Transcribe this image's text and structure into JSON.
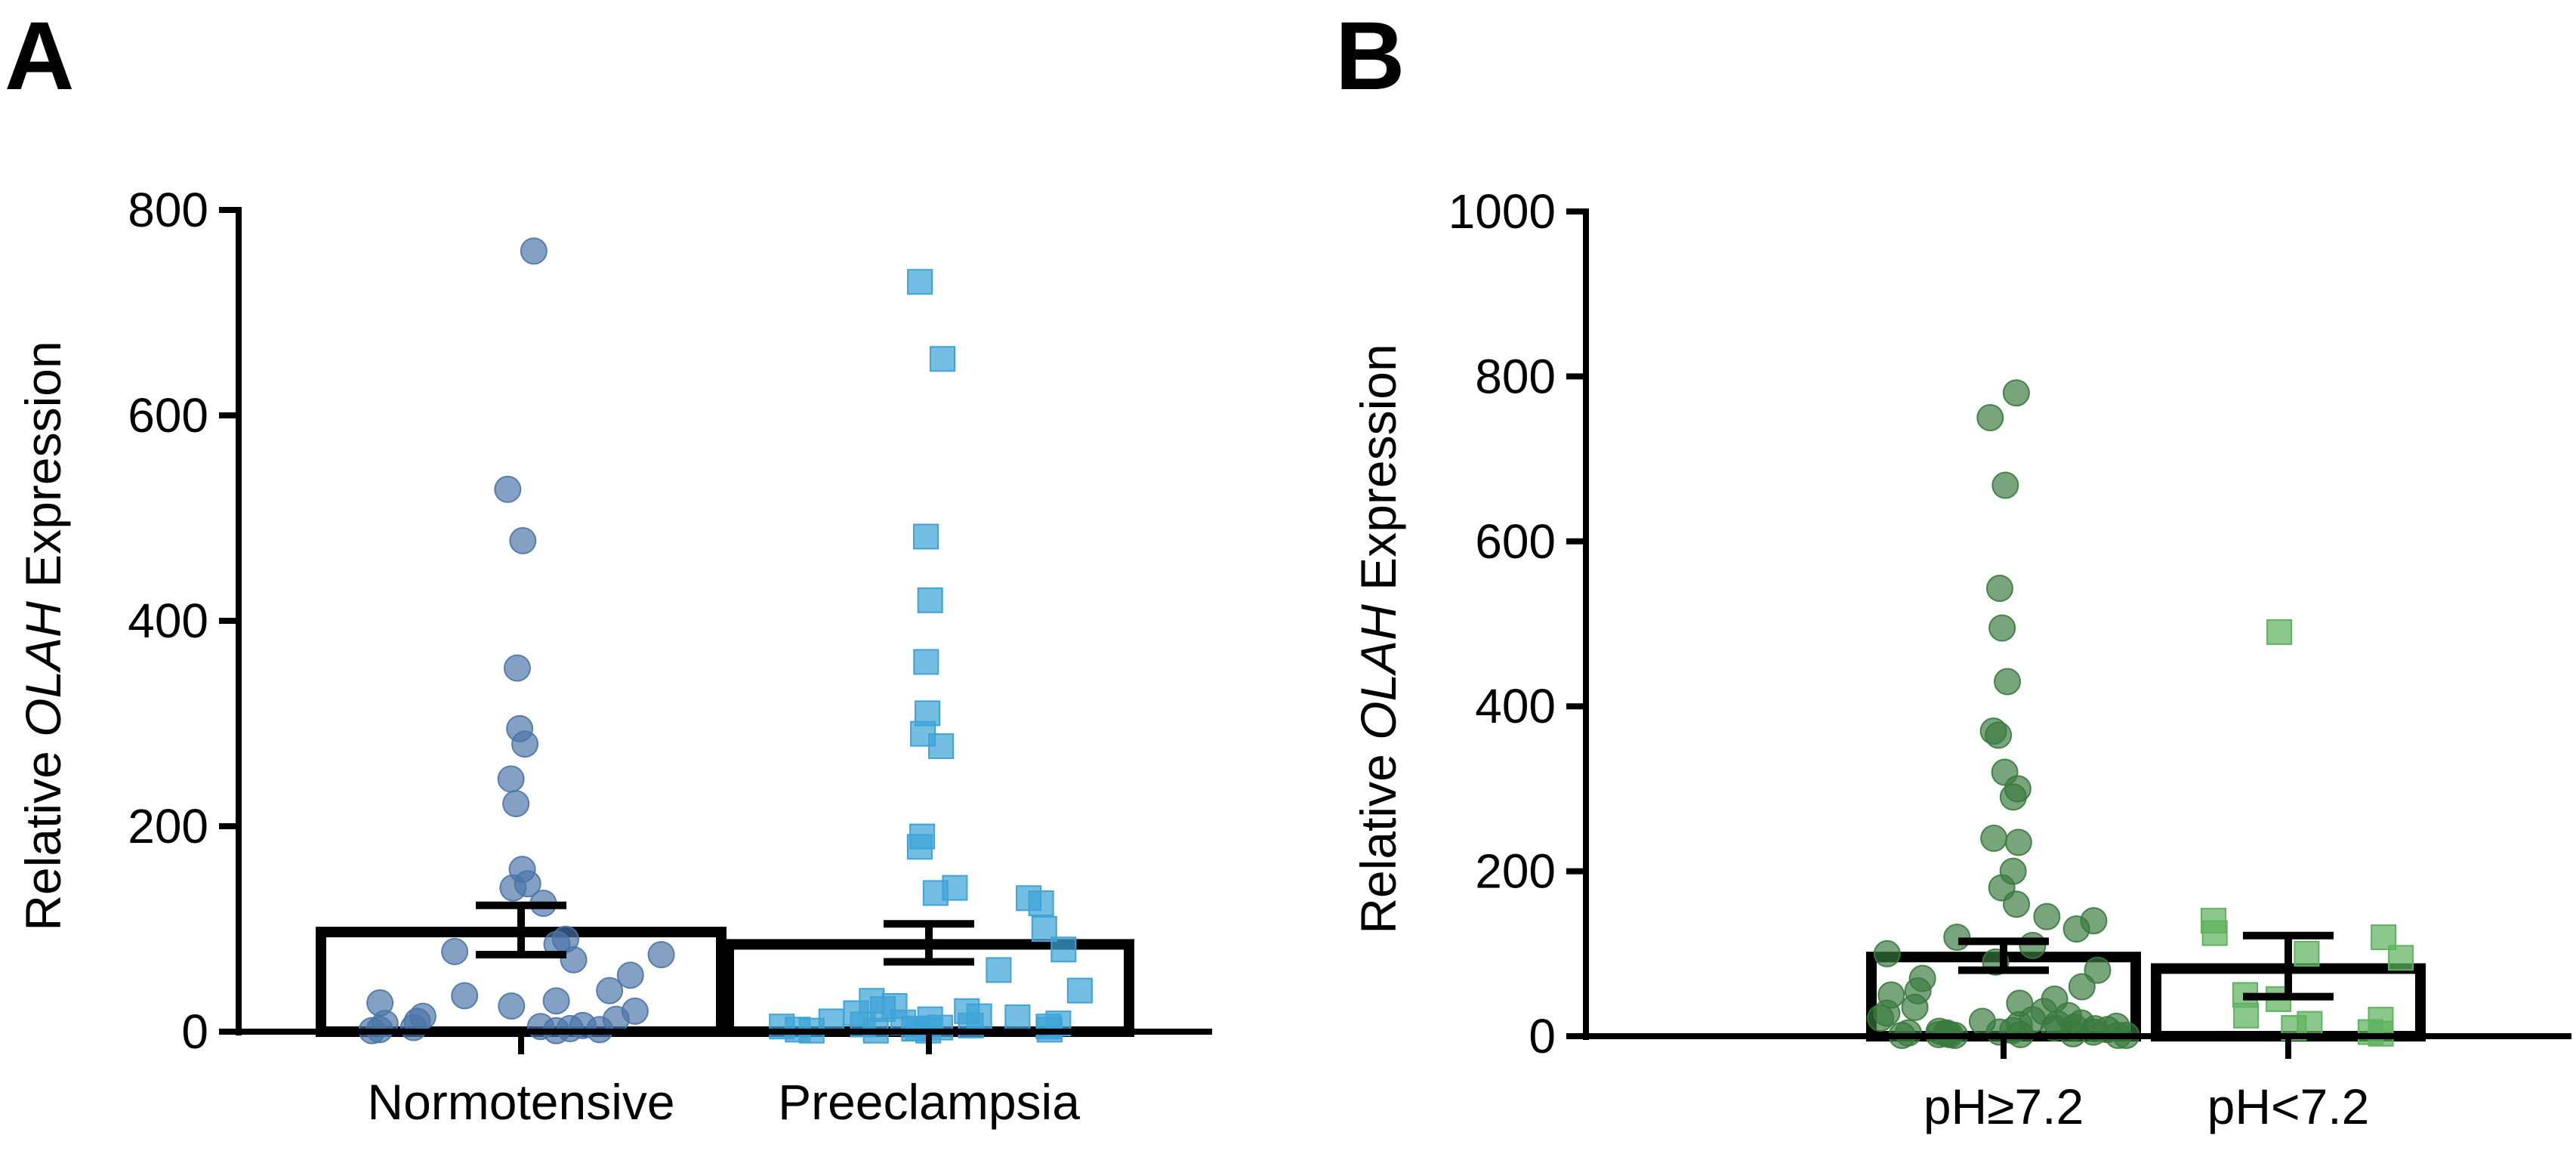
{
  "panels": {
    "a": {
      "letter": "A"
    },
    "b": {
      "letter": "B"
    }
  },
  "chart_data": [
    {
      "panel": "A",
      "type": "bar",
      "title": "",
      "xlabel": "",
      "ylabel_parts": [
        "Relative ",
        "OLAH",
        " Expression"
      ],
      "ylim": [
        0,
        800
      ],
      "yticks": [
        0,
        200,
        400,
        600,
        800
      ],
      "ytick_labels": [
        "0",
        "200",
        "400",
        "600",
        "800"
      ],
      "categories": [
        "Normotensive",
        "Preeclampsia"
      ],
      "series": [
        {
          "name": "Normotensive",
          "mean": 97,
          "sem_low": 75,
          "sem_high": 123,
          "marker": "circle",
          "color": "#4a74a8",
          "points": [
            760,
            528,
            478,
            354,
            295,
            280,
            246,
            222,
            158,
            144,
            140,
            125,
            90,
            85,
            78,
            75,
            70,
            55,
            40,
            35,
            30,
            28,
            25,
            20,
            15,
            12,
            10,
            8,
            6,
            5,
            4,
            3,
            2,
            2,
            1,
            1
          ]
        },
        {
          "name": "Preeclampsia",
          "mean": 85,
          "sem_low": 68,
          "sem_high": 105,
          "marker": "square",
          "color": "#3fa3d8",
          "points": [
            730,
            655,
            482,
            420,
            360,
            310,
            290,
            278,
            190,
            180,
            140,
            135,
            130,
            125,
            100,
            80,
            60,
            40,
            30,
            25,
            22,
            20,
            18,
            15,
            14,
            12,
            10,
            9,
            8,
            7,
            6,
            5,
            5,
            4,
            3,
            3,
            2,
            2,
            1,
            1,
            1
          ]
        }
      ]
    },
    {
      "panel": "B",
      "type": "bar",
      "title": "",
      "xlabel": "",
      "ylabel_parts": [
        "Relative ",
        "OLAH",
        " Expression"
      ],
      "ylim": [
        0,
        1000
      ],
      "yticks": [
        0,
        200,
        400,
        600,
        800,
        1000
      ],
      "ytick_labels": [
        "0",
        "200",
        "400",
        "600",
        "800",
        "1000"
      ],
      "categories": [
        "pH≥7.2",
        "pH<7.2"
      ],
      "series": [
        {
          "name": "pH≥7.2",
          "mean": 96,
          "sem_low": 80,
          "sem_high": 115,
          "marker": "circle",
          "color": "#3a7a3e",
          "points": [
            780,
            750,
            668,
            543,
            495,
            430,
            370,
            365,
            320,
            300,
            290,
            240,
            235,
            200,
            180,
            160,
            145,
            140,
            130,
            120,
            110,
            100,
            90,
            80,
            70,
            60,
            55,
            50,
            45,
            40,
            35,
            30,
            28,
            25,
            22,
            20,
            18,
            16,
            15,
            14,
            12,
            11,
            10,
            9,
            8,
            7,
            6,
            5,
            5,
            4,
            4,
            3,
            3,
            2,
            2,
            2,
            1,
            1,
            1,
            1
          ]
        },
        {
          "name": "pH<7.2",
          "mean": 82,
          "sem_low": 48,
          "sem_high": 122,
          "marker": "square",
          "color": "#5fb35f",
          "points": [
            490,
            140,
            125,
            120,
            100,
            95,
            50,
            45,
            25,
            20,
            15,
            10,
            5,
            3
          ]
        }
      ]
    }
  ]
}
